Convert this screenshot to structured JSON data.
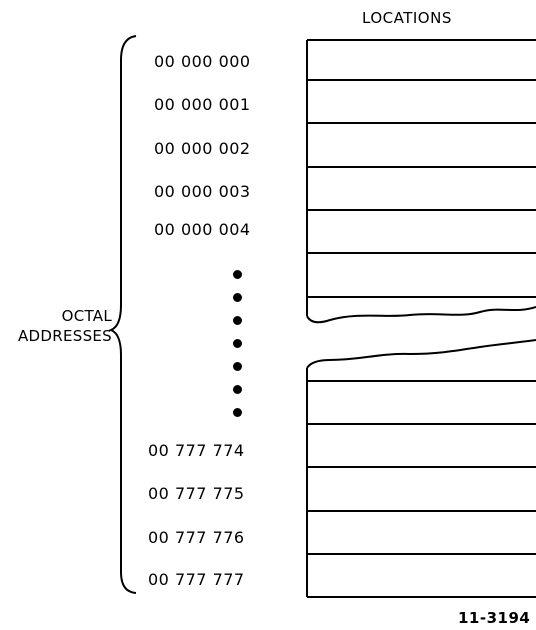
{
  "header": {
    "locations_label": "LOCATIONS"
  },
  "side_label": {
    "line1": "OCTAL",
    "line2": "ADDRESSES"
  },
  "addresses_top": [
    "00 000 000",
    "00 000 001",
    "00 000 002",
    "00 000 003",
    "00 000 004"
  ],
  "addresses_bottom": [
    "00 777 774",
    "00 777 775",
    "00 777 776",
    "00 777 777"
  ],
  "figure_number": "11-3194"
}
